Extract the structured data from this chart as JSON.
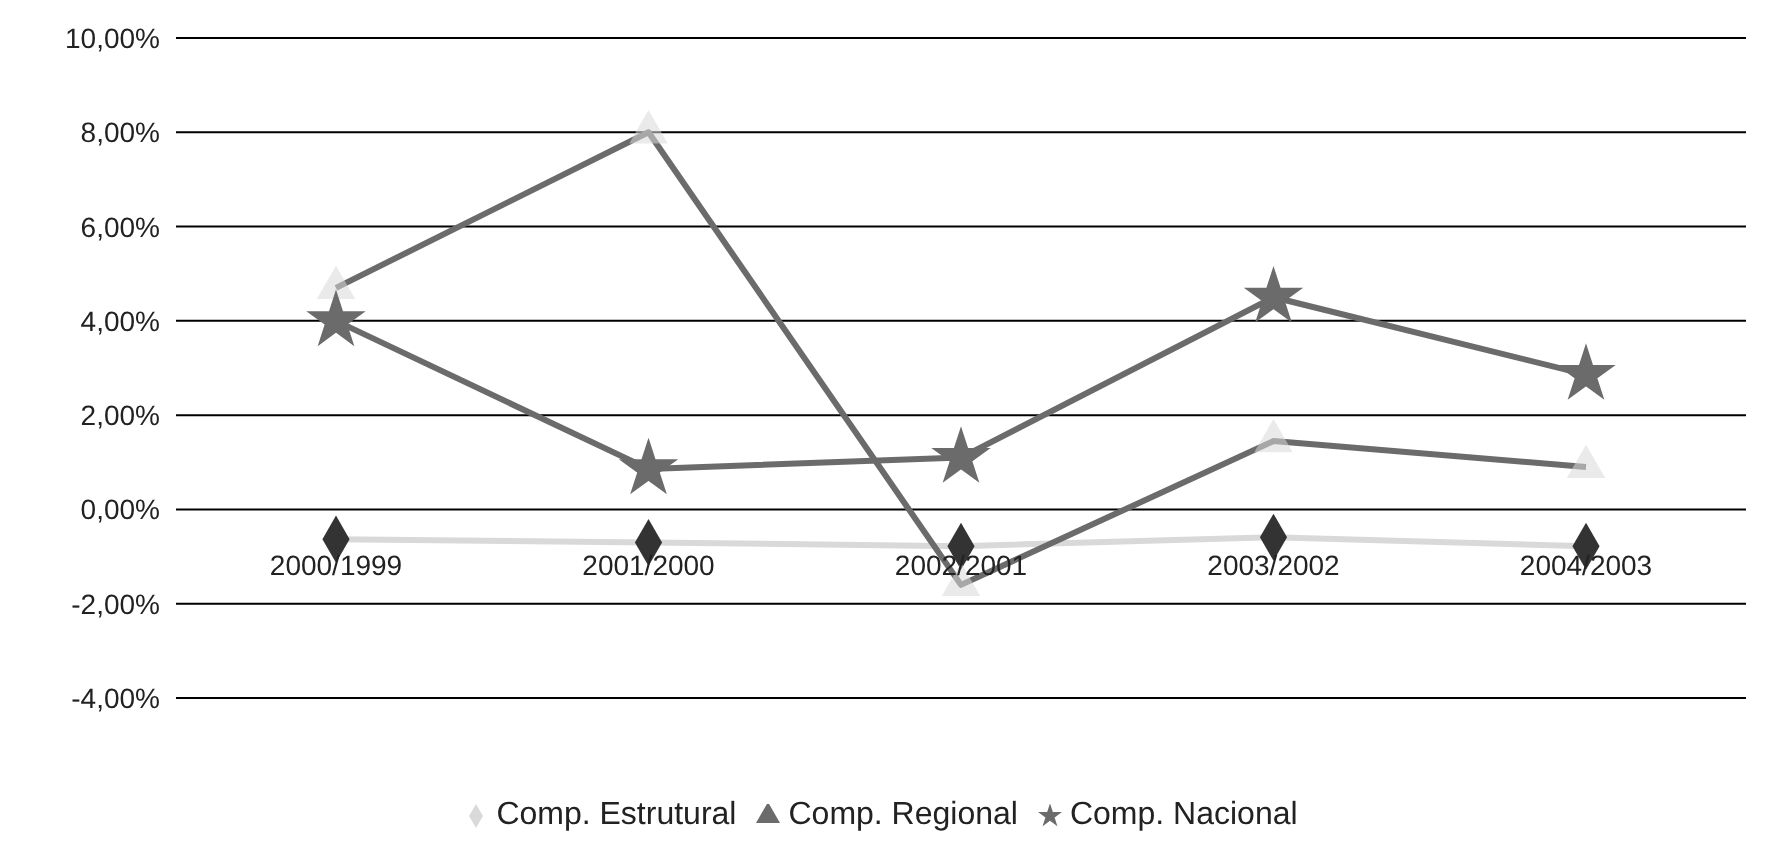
{
  "chart_data": {
    "type": "line",
    "categories": [
      "2000/1999",
      "2001/2000",
      "2002/2001",
      "2003/2002",
      "2004/2003"
    ],
    "series": [
      {
        "name": "Comp. Estrutural",
        "color": "#d9d9d9",
        "marker": "diamond",
        "values": [
          -0.63,
          -0.7,
          -0.78,
          -0.59,
          -0.78
        ]
      },
      {
        "name": "Comp. Regional",
        "color": "#6b6b6b",
        "marker": "triangle",
        "values": [
          4.7,
          8.0,
          -1.6,
          1.45,
          0.9
        ]
      },
      {
        "name": "Comp. Nacional",
        "color": "#6b6b6b",
        "marker": "star",
        "values": [
          4.0,
          0.86,
          1.1,
          4.5,
          2.86
        ]
      }
    ],
    "ylim": [
      -4,
      10
    ],
    "yticks": [
      {
        "value": -4,
        "label": "-4,00%"
      },
      {
        "value": -2,
        "label": "-2,00%"
      },
      {
        "value": 0,
        "label": "0,00%"
      },
      {
        "value": 2,
        "label": "2,00%"
      },
      {
        "value": 4,
        "label": "4,00%"
      },
      {
        "value": 6,
        "label": "6,00%"
      },
      {
        "value": 8,
        "label": "8,00%"
      },
      {
        "value": 10,
        "label": "10,00%"
      }
    ],
    "grid": "y",
    "legend": "bottom"
  }
}
